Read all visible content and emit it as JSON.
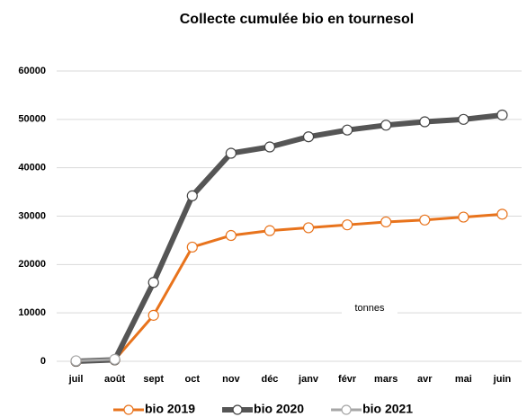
{
  "chart_data": {
    "type": "line",
    "title": "Collecte  cumulée bio  en tournesol",
    "annotation": "tonnes",
    "categories": [
      "juil",
      "août",
      "sept",
      "oct",
      "nov",
      "déc",
      "janv",
      "févr",
      "mars",
      "avr",
      "mai",
      "juin"
    ],
    "series": [
      {
        "name": "bio 2019",
        "color": "#e8731c",
        "values": [
          0,
          300,
          9500,
          23600,
          26000,
          27000,
          27600,
          28200,
          28800,
          29200,
          29800,
          30400
        ]
      },
      {
        "name": "bio 2020",
        "color": "#555555",
        "values": [
          0,
          300,
          16300,
          34200,
          43000,
          44300,
          46400,
          47800,
          48800,
          49500,
          50000,
          50900
        ]
      },
      {
        "name": "bio 2021",
        "color": "#a6a6a6",
        "values": [
          100,
          400,
          null,
          null,
          null,
          null,
          null,
          null,
          null,
          null,
          null,
          null
        ]
      }
    ],
    "ylim": [
      0,
      60000
    ],
    "yticks": [
      0,
      10000,
      20000,
      30000,
      40000,
      50000,
      60000
    ],
    "grid": true,
    "legend": "bottom"
  }
}
